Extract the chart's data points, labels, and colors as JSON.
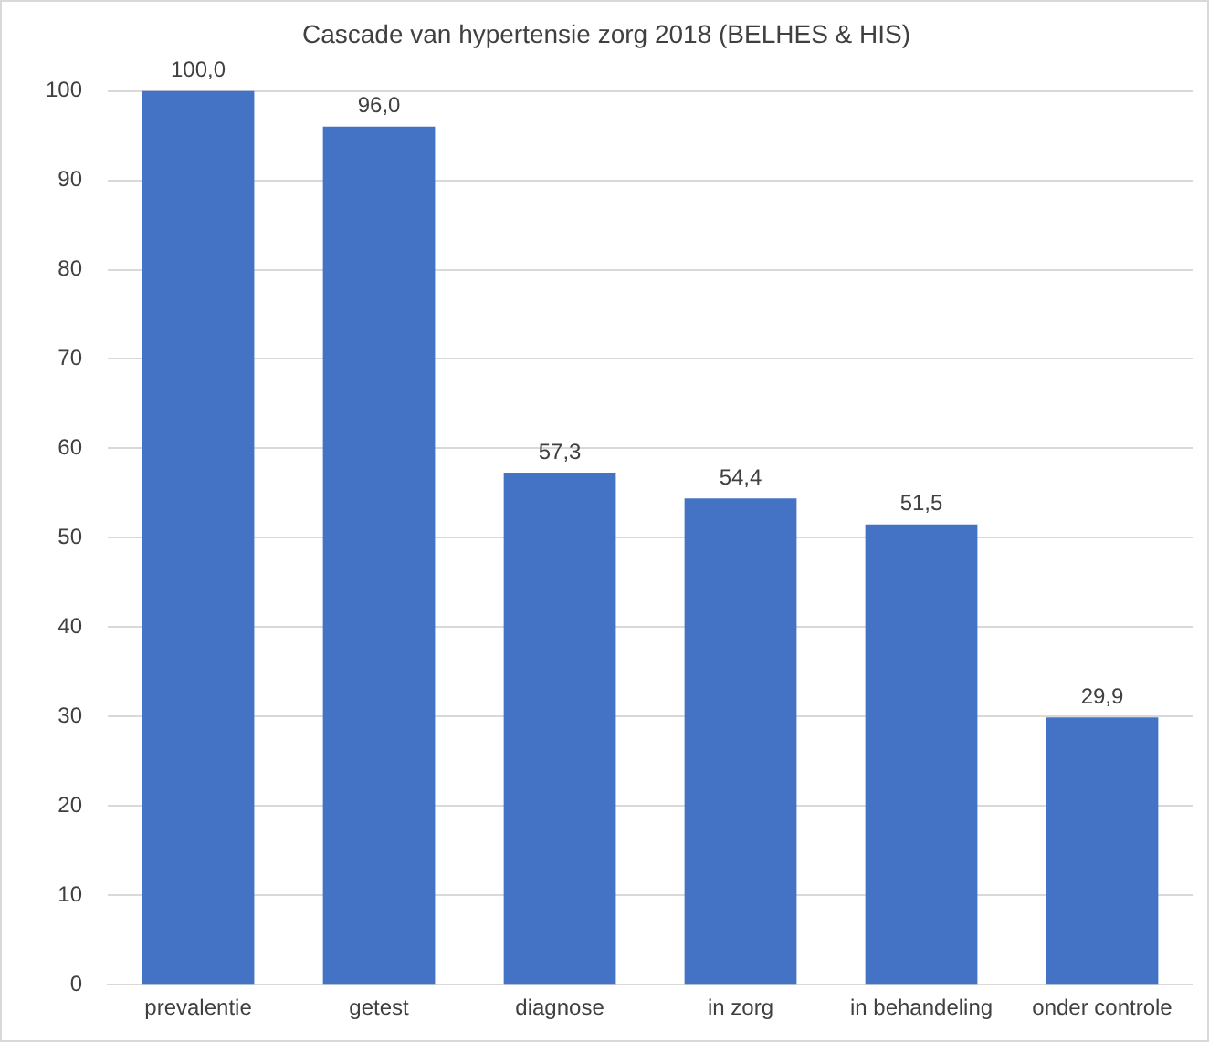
{
  "chart_data": {
    "type": "bar",
    "title": "Cascade van hypertensie zorg 2018 (BELHES & HIS)",
    "categories": [
      "prevalentie",
      "getest",
      "diagnose",
      "in zorg",
      "in behandeling",
      "onder controle"
    ],
    "values": [
      100.0,
      96.0,
      57.3,
      54.4,
      51.5,
      29.9
    ],
    "value_labels": [
      "100,0",
      "96,0",
      "57,3",
      "54,4",
      "51,5",
      "29,9"
    ],
    "color": "#4472c4",
    "ylim": [
      0,
      100
    ],
    "yticks": [
      0,
      10,
      20,
      30,
      40,
      50,
      60,
      70,
      80,
      90,
      100
    ],
    "grid": "y",
    "legend": false
  }
}
